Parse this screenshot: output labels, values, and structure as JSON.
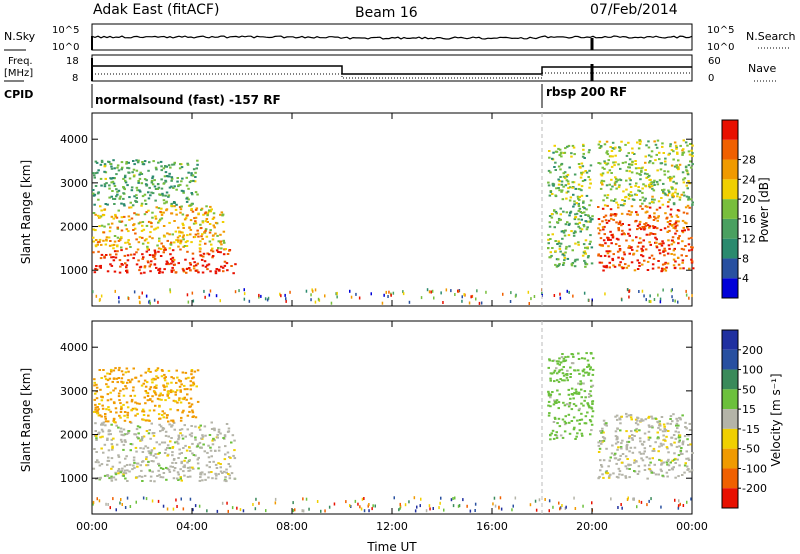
{
  "header": {
    "station": "Adak East (fitACF)",
    "beam": "Beam 16",
    "date": "07/Feb/2014"
  },
  "top_panels": {
    "nsky_label": "N.Sky",
    "nsearch_label": "N.Search",
    "nsky_ticks": [
      "10^5",
      "10^0"
    ],
    "freq_label_1": "Freq.",
    "freq_label_2": "[MHz]",
    "freq_ticks": [
      "18",
      "8"
    ],
    "nave_label": "Nave",
    "nave_ticks": [
      "60",
      "0"
    ],
    "cpid_label": "CPID",
    "cpid_segments": [
      "normalsound (fast) -157 RF",
      "rbsp 200 RF"
    ]
  },
  "colorbars": {
    "power": {
      "label": "Power [dB]",
      "ticks": [
        "4",
        "8",
        "12",
        "16",
        "20",
        "24",
        "28"
      ],
      "colors": [
        "#0000d8",
        "#2850a0",
        "#2a8a6e",
        "#4aa060",
        "#78be3c",
        "#f0d000",
        "#f09a00",
        "#f06000",
        "#e81000"
      ]
    },
    "velocity": {
      "label": "Velocity [m s⁻¹]",
      "ticks": [
        "200",
        "100",
        "50",
        "15",
        "-15",
        "-50",
        "-100",
        "-200"
      ],
      "colors": [
        "#2030a0",
        "#2850a0",
        "#3a8a5a",
        "#6cc03c",
        "#b4b4a8",
        "#f0d000",
        "#f09a00",
        "#f06000",
        "#e81000"
      ]
    }
  },
  "chart_data": [
    {
      "type": "heatmap",
      "title": "Power [dB]",
      "xlabel": "Time UT",
      "ylabel": "Slant Range [km]",
      "x_ticks": [
        "00:00",
        "04:00",
        "08:00",
        "12:00",
        "16:00",
        "20:00",
        "00:00"
      ],
      "y_ticks": [
        "1000",
        "2000",
        "3000",
        "4000"
      ],
      "xlim_hours": [
        0,
        24
      ],
      "ylim_km": [
        180,
        4600
      ],
      "echo_regions": [
        {
          "t": [
            0.0,
            5.7
          ],
          "range_km": [
            950,
            1500
          ],
          "value_db": 28
        },
        {
          "t": [
            0.0,
            5.3
          ],
          "range_km": [
            1500,
            2500
          ],
          "value_db": 20
        },
        {
          "t": [
            0.0,
            4.2
          ],
          "range_km": [
            2500,
            3550
          ],
          "value_db": 12
        },
        {
          "t": [
            18.2,
            20.0
          ],
          "range_km": [
            1100,
            3900
          ],
          "value_db": 14
        },
        {
          "t": [
            20.2,
            24.0
          ],
          "range_km": [
            1000,
            2500
          ],
          "value_db": 26
        },
        {
          "t": [
            20.2,
            24.0
          ],
          "range_km": [
            2500,
            4000
          ],
          "value_db": 16
        }
      ]
    },
    {
      "type": "heatmap",
      "title": "Velocity [m s⁻¹]",
      "xlabel": "Time UT",
      "ylabel": "Slant Range [km]",
      "x_ticks": [
        "00:00",
        "04:00",
        "08:00",
        "12:00",
        "16:00",
        "20:00",
        "00:00"
      ],
      "y_ticks": [
        "1000",
        "2000",
        "3000",
        "4000"
      ],
      "xlim_hours": [
        0,
        24
      ],
      "ylim_km": [
        180,
        4600
      ],
      "echo_regions": [
        {
          "t": [
            0.0,
            5.7
          ],
          "range_km": [
            950,
            2300
          ],
          "value_ms": 0
        },
        {
          "t": [
            0.0,
            4.2
          ],
          "range_km": [
            2300,
            3550
          ],
          "value_ms": -60
        },
        {
          "t": [
            18.2,
            20.0
          ],
          "range_km": [
            1900,
            3900
          ],
          "value_ms": 30
        },
        {
          "t": [
            20.2,
            24.0
          ],
          "range_km": [
            1000,
            2500
          ],
          "value_ms": 0
        }
      ]
    }
  ],
  "time_axis": {
    "label": "Time UT",
    "ticks": [
      "00:00",
      "04:00",
      "08:00",
      "12:00",
      "16:00",
      "20:00",
      "00:00"
    ]
  },
  "range_axis": {
    "label": "Slant Range [km]",
    "ticks": [
      "1000",
      "2000",
      "3000",
      "4000"
    ]
  }
}
